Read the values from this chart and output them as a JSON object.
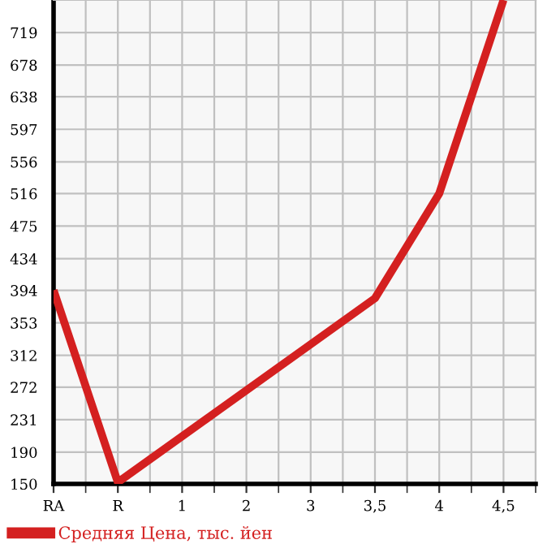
{
  "chart_data": {
    "type": "line",
    "categories": [
      "RA",
      "R",
      "1",
      "2",
      "3",
      "3,5",
      "4",
      "4,5"
    ],
    "series": [
      {
        "name": "Средняя Цена, тыс. йен",
        "color": "#d42020",
        "values": [
          394,
          152,
          null,
          null,
          null,
          384,
          516,
          760
        ]
      }
    ],
    "ylim": [
      150,
      760
    ],
    "yticks": [
      150,
      190,
      231,
      272,
      312,
      353,
      394,
      434,
      475,
      516,
      556,
      597,
      638,
      678,
      719
    ],
    "grid": true,
    "legend": "bottom",
    "marker": "none",
    "line_style": "solid"
  }
}
